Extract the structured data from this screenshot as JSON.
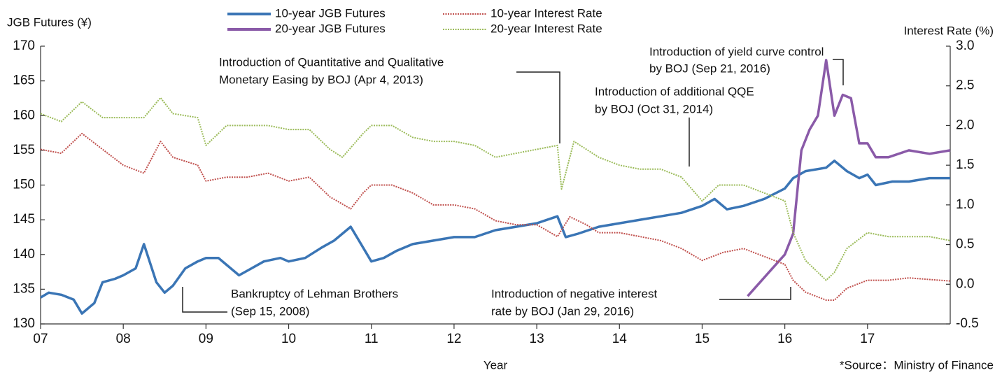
{
  "chart_data": {
    "type": "line",
    "y_label": "JGB Futures (¥)",
    "y2_label": "Interest Rate (%)",
    "x_label": "Year",
    "source": "*Source：Ministry of Finance",
    "xlim": [
      2007,
      2018
    ],
    "xticks": [
      {
        "value": 2007,
        "label": "07"
      },
      {
        "value": 2008,
        "label": "08"
      },
      {
        "value": 2009,
        "label": "09"
      },
      {
        "value": 2010,
        "label": "10"
      },
      {
        "value": 2011,
        "label": "11"
      },
      {
        "value": 2012,
        "label": "12"
      },
      {
        "value": 2013,
        "label": "13"
      },
      {
        "value": 2014,
        "label": "14"
      },
      {
        "value": 2015,
        "label": "15"
      },
      {
        "value": 2016,
        "label": "16"
      },
      {
        "value": 2017,
        "label": "17"
      }
    ],
    "ylim": [
      130,
      170
    ],
    "yticks": [
      130,
      135,
      140,
      145,
      150,
      155,
      160,
      165,
      170
    ],
    "y2lim": [
      -0.5,
      3.0
    ],
    "y2ticks": [
      {
        "value": -0.5,
        "label": "-0.5"
      },
      {
        "value": 0,
        "label": "0.0"
      },
      0.5,
      {
        "value": 1,
        "label": "1.0"
      },
      1.5,
      {
        "value": 2,
        "label": "2.0"
      },
      2.5,
      {
        "value": 3,
        "label": "3.0"
      }
    ],
    "series": [
      {
        "name": "10-year JGB Futures",
        "color": "#3a75b5",
        "dash": "solid",
        "x": [
          2007.0,
          2007.1,
          2007.25,
          2007.4,
          2007.5,
          2007.65,
          2007.75,
          2007.9,
          2008.0,
          2008.15,
          2008.25,
          2008.4,
          2008.5,
          2008.6,
          2008.75,
          2008.9,
          2009.0,
          2009.15,
          2009.25,
          2009.4,
          2009.55,
          2009.7,
          2009.9,
          2010.0,
          2010.2,
          2010.4,
          2010.55,
          2010.75,
          2010.85,
          2011.0,
          2011.15,
          2011.3,
          2011.5,
          2011.75,
          2012.0,
          2012.25,
          2012.5,
          2012.75,
          2013.0,
          2013.25,
          2013.35,
          2013.5,
          2013.75,
          2014.0,
          2014.25,
          2014.5,
          2014.75,
          2015.0,
          2015.15,
          2015.3,
          2015.5,
          2015.75,
          2016.0,
          2016.1,
          2016.25,
          2016.5,
          2016.6,
          2016.75,
          2016.9,
          2017.0,
          2017.1,
          2017.3,
          2017.5,
          2017.75,
          2018.0
        ],
        "values": [
          133.8,
          134.5,
          134.2,
          133.5,
          131.5,
          133,
          136,
          136.5,
          137,
          138,
          141.5,
          136,
          134.5,
          135.5,
          138,
          139,
          139.5,
          139.5,
          138.5,
          137,
          138,
          139,
          139.5,
          139,
          139.5,
          141,
          142,
          144,
          142,
          139,
          139.5,
          140.5,
          141.5,
          142,
          142.5,
          142.5,
          143.5,
          144,
          144.5,
          145.5,
          142.5,
          143,
          144,
          144.5,
          145,
          145.5,
          146,
          147,
          148,
          146.5,
          147,
          148,
          149.5,
          151,
          152,
          152.5,
          153.5,
          152,
          151,
          151.5,
          150,
          150.5,
          150.5,
          151,
          151
        ]
      },
      {
        "name": "20-year JGB Futures",
        "color": "#8a5aa8",
        "dash": "solid",
        "x": [
          2015.55,
          2015.7,
          2015.85,
          2016.0,
          2016.1,
          2016.2,
          2016.3,
          2016.4,
          2016.5,
          2016.6,
          2016.7,
          2016.8,
          2016.9,
          2017.0,
          2017.1,
          2017.25,
          2017.5,
          2017.75,
          2018.0
        ],
        "values": [
          134,
          136,
          138,
          140,
          143,
          155,
          158,
          160,
          168,
          160,
          163,
          162.5,
          156,
          156,
          154,
          154,
          155,
          154.5,
          155
        ]
      },
      {
        "name": "10-year Interest Rate",
        "color": "#c0504d",
        "dash": "dotted",
        "axis": "y2",
        "x": [
          2007.0,
          2007.25,
          2007.5,
          2007.75,
          2008.0,
          2008.25,
          2008.45,
          2008.6,
          2008.9,
          2009.0,
          2009.25,
          2009.5,
          2009.75,
          2010.0,
          2010.25,
          2010.5,
          2010.75,
          2010.9,
          2011.0,
          2011.25,
          2011.5,
          2011.75,
          2012.0,
          2012.25,
          2012.5,
          2012.75,
          2013.0,
          2013.25,
          2013.4,
          2013.6,
          2013.75,
          2014.0,
          2014.25,
          2014.5,
          2014.75,
          2015.0,
          2015.25,
          2015.5,
          2015.75,
          2016.0,
          2016.1,
          2016.25,
          2016.5,
          2016.6,
          2016.75,
          2017.0,
          2017.25,
          2017.5,
          2017.75,
          2018.0
        ],
        "values": [
          1.7,
          1.65,
          1.9,
          1.7,
          1.5,
          1.4,
          1.8,
          1.6,
          1.5,
          1.3,
          1.35,
          1.35,
          1.4,
          1.3,
          1.35,
          1.1,
          0.95,
          1.15,
          1.25,
          1.25,
          1.15,
          1.0,
          1.0,
          0.95,
          0.8,
          0.75,
          0.75,
          0.6,
          0.85,
          0.75,
          0.65,
          0.65,
          0.6,
          0.55,
          0.45,
          0.3,
          0.4,
          0.45,
          0.35,
          0.25,
          0.05,
          -0.1,
          -0.2,
          -0.2,
          -0.05,
          0.05,
          0.05,
          0.08,
          0.06,
          0.04
        ]
      },
      {
        "name": "20-year Interest Rate",
        "color": "#9bbb59",
        "dash": "dotted",
        "axis": "y2",
        "x": [
          2007.0,
          2007.25,
          2007.5,
          2007.75,
          2008.0,
          2008.25,
          2008.45,
          2008.6,
          2008.9,
          2009.0,
          2009.25,
          2009.5,
          2009.75,
          2010.0,
          2010.25,
          2010.5,
          2010.65,
          2010.9,
          2011.0,
          2011.25,
          2011.5,
          2011.75,
          2012.0,
          2012.25,
          2012.5,
          2012.75,
          2013.0,
          2013.25,
          2013.3,
          2013.45,
          2013.75,
          2014.0,
          2014.25,
          2014.5,
          2014.75,
          2015.0,
          2015.2,
          2015.5,
          2015.75,
          2016.0,
          2016.1,
          2016.25,
          2016.5,
          2016.6,
          2016.75,
          2017.0,
          2017.25,
          2017.5,
          2017.75,
          2018.0
        ],
        "values": [
          2.15,
          2.05,
          2.3,
          2.1,
          2.1,
          2.1,
          2.35,
          2.15,
          2.1,
          1.75,
          2.0,
          2.0,
          2.0,
          1.95,
          1.95,
          1.7,
          1.6,
          1.9,
          2.0,
          2.0,
          1.85,
          1.8,
          1.8,
          1.75,
          1.6,
          1.65,
          1.7,
          1.75,
          1.2,
          1.8,
          1.6,
          1.5,
          1.45,
          1.45,
          1.35,
          1.05,
          1.25,
          1.25,
          1.15,
          1.05,
          0.65,
          0.3,
          0.05,
          0.15,
          0.45,
          0.65,
          0.6,
          0.6,
          0.6,
          0.55
        ]
      }
    ],
    "annotations": [
      {
        "text": [
          "Introduction of Quantitative and Qualitative",
          "Monetary Easing by BOJ (Apr 4, 2013)"
        ]
      },
      {
        "text": [
          "Introduction of yield curve control",
          "by BOJ (Sep 21, 2016)"
        ]
      },
      {
        "text": [
          "Introduction of additional QQE",
          "by BOJ (Oct 31, 2014)"
        ]
      },
      {
        "text": [
          "Bankruptcy of Lehman Brothers",
          "(Sep 15, 2008)"
        ]
      },
      {
        "text": [
          "Introduction  of negative interest",
          "rate by BOJ (Jan 29, 2016)"
        ]
      }
    ]
  }
}
